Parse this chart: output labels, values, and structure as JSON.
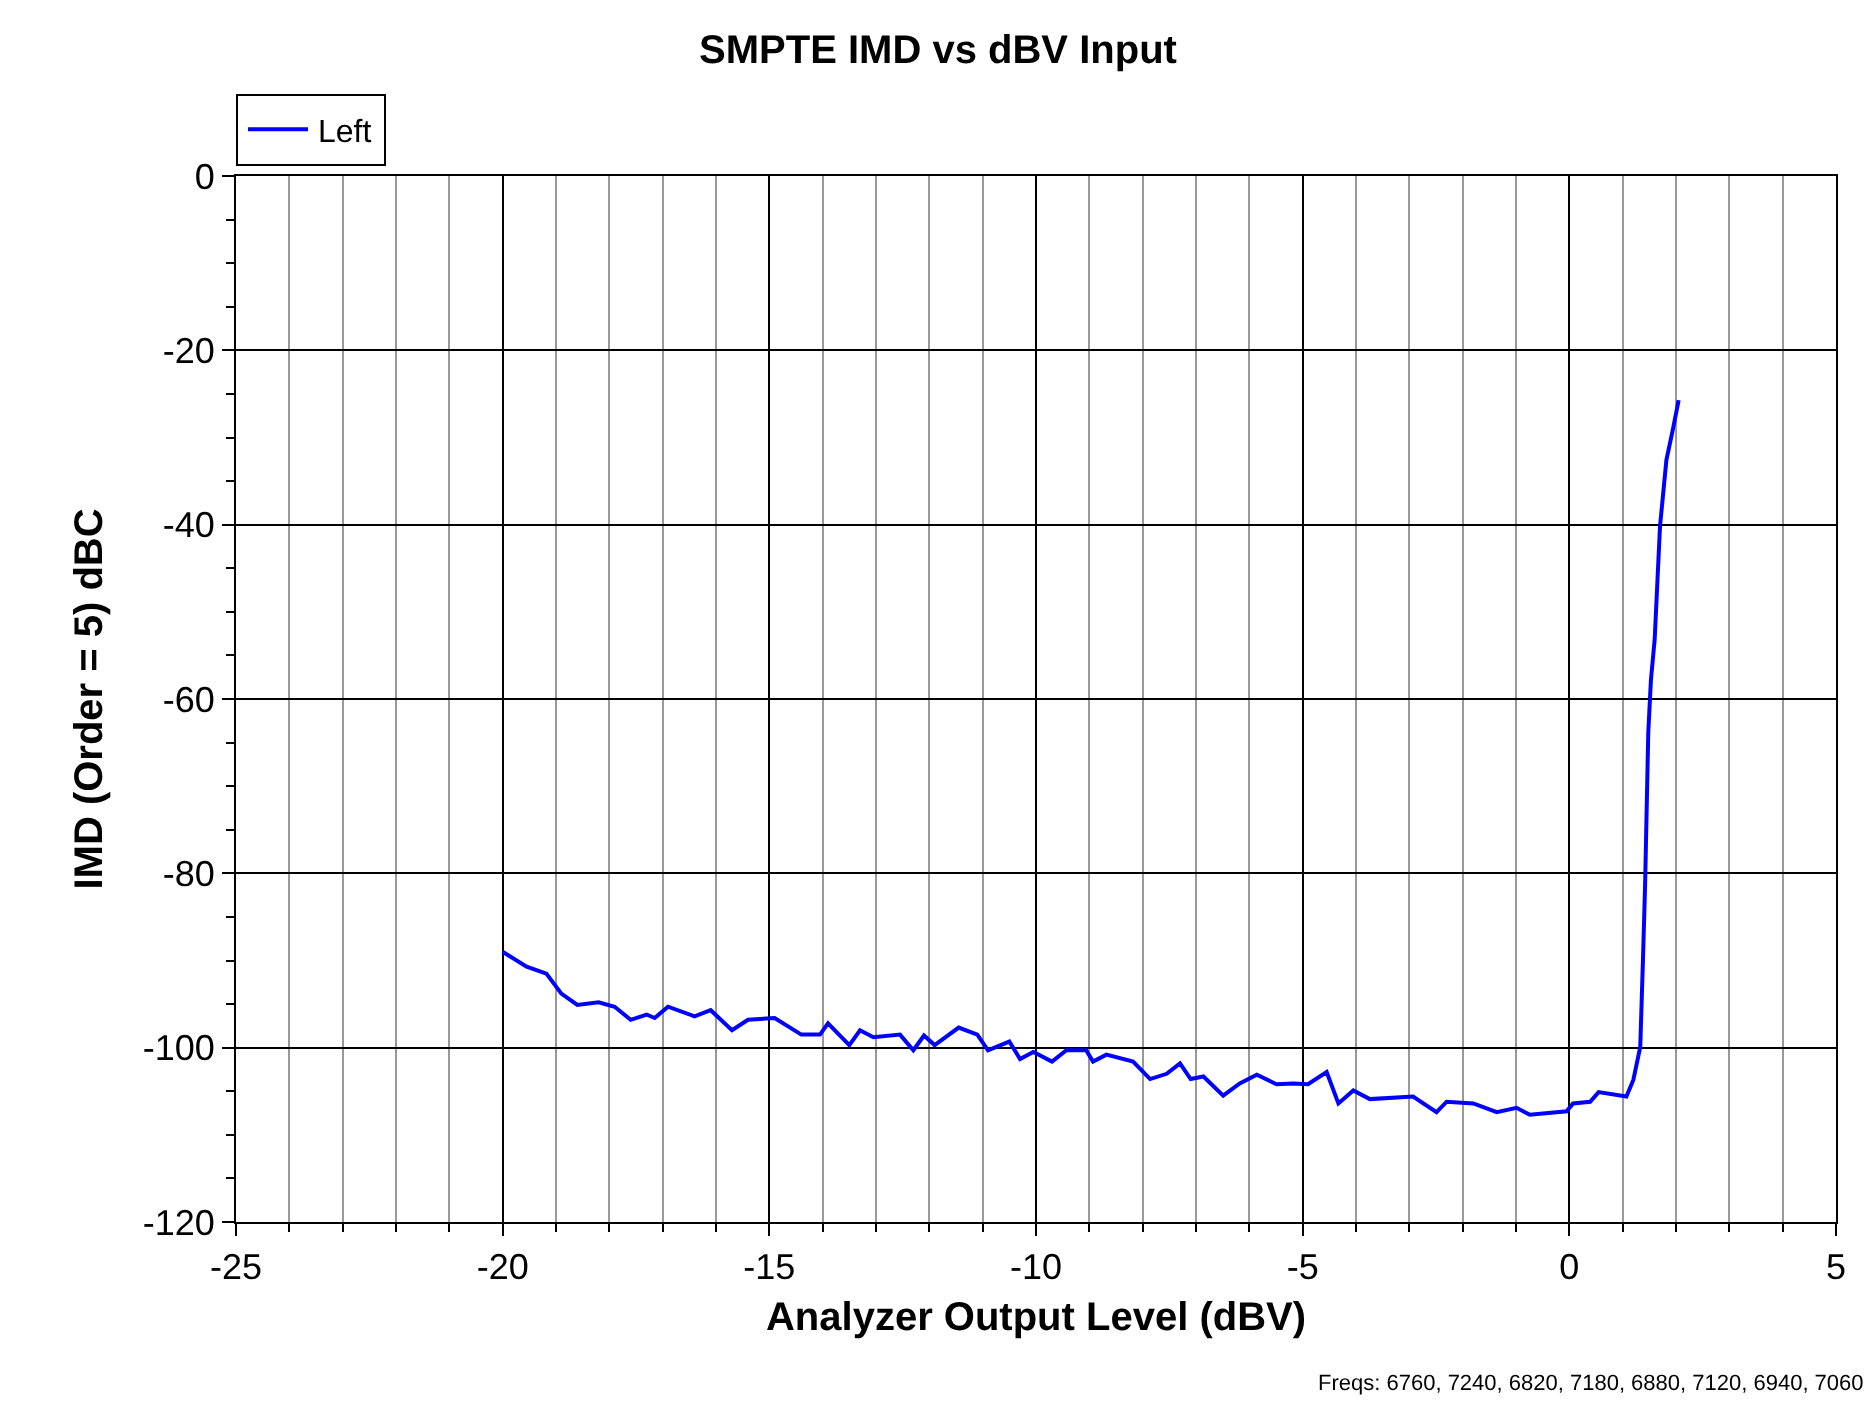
{
  "chart_data": {
    "type": "line",
    "title": "SMPTE IMD vs dBV Input",
    "xlabel": "Analyzer Output Level (dBV)",
    "ylabel": "IMD (Order = 5) dBC",
    "annotations": [
      "Freqs: 6760, 7240, 6820, 7180, 6880, 7120, 6940, 7060"
    ],
    "xlim": [
      -25,
      5
    ],
    "xticks": [
      -25,
      -20,
      -15,
      -10,
      -5,
      0,
      5
    ],
    "ylim": [
      -120,
      0
    ],
    "yticks": [
      -120,
      -100,
      -80,
      -60,
      -40,
      -20,
      0
    ],
    "grid": true,
    "legend": "top left",
    "marker": "none",
    "line_style": "solid",
    "series": [
      {
        "name": "Left",
        "color": "#0000ff",
        "x": [
          -20,
          -19.55,
          -19.18,
          -18.9,
          -18.6,
          -18.2,
          -17.9,
          -17.6,
          -17.3,
          -17.15,
          -16.9,
          -16.4,
          -16.1,
          -15.7,
          -15.4,
          -14.9,
          -14.4,
          -14.05,
          -13.9,
          -13.5,
          -13.3,
          -13.05,
          -12.55,
          -12.3,
          -12.1,
          -11.9,
          -11.45,
          -11.1,
          -10.9,
          -10.5,
          -10.3,
          -10.05,
          -9.7,
          -9.43,
          -9.06,
          -8.93,
          -8.68,
          -8.18,
          -7.86,
          -7.55,
          -7.3,
          -7.1,
          -6.86,
          -6.49,
          -6.18,
          -5.86,
          -5.49,
          -5.18,
          -4.9,
          -4.55,
          -4.33,
          -4.05,
          -3.74,
          -2.93,
          -2.49,
          -2.3,
          -1.8,
          -1.36,
          -0.99,
          -0.74,
          -0.05,
          0.07,
          0.39,
          0.55,
          1.07,
          1.2,
          1.33,
          1.38,
          1.42,
          1.48,
          1.53,
          1.6,
          1.7,
          1.82,
          1.95,
          2.05
        ],
        "values": [
          -89,
          -90.7,
          -91.5,
          -93.8,
          -95.1,
          -94.8,
          -95.3,
          -96.8,
          -96.2,
          -96.6,
          -95.3,
          -96.4,
          -95.7,
          -98,
          -96.8,
          -96.6,
          -98.5,
          -98.5,
          -97.2,
          -99.7,
          -98,
          -98.8,
          -98.5,
          -100.3,
          -98.6,
          -99.7,
          -97.7,
          -98.5,
          -100.3,
          -99.3,
          -101.3,
          -100.5,
          -101.6,
          -100.3,
          -100.3,
          -101.6,
          -100.8,
          -101.6,
          -103.6,
          -103,
          -101.8,
          -103.6,
          -103.3,
          -105.5,
          -104.1,
          -103.1,
          -104.2,
          -104.1,
          -104.2,
          -102.8,
          -106.4,
          -104.9,
          -105.9,
          -105.6,
          -107.4,
          -106.2,
          -106.4,
          -107.4,
          -106.9,
          -107.7,
          -107.3,
          -106.4,
          -106.2,
          -105.1,
          -105.6,
          -103.7,
          -99.9,
          -90,
          -81.5,
          -63.9,
          -57.8,
          -53.2,
          -40.2,
          -32.6,
          -28.8,
          -25.7
        ]
      }
    ]
  }
}
